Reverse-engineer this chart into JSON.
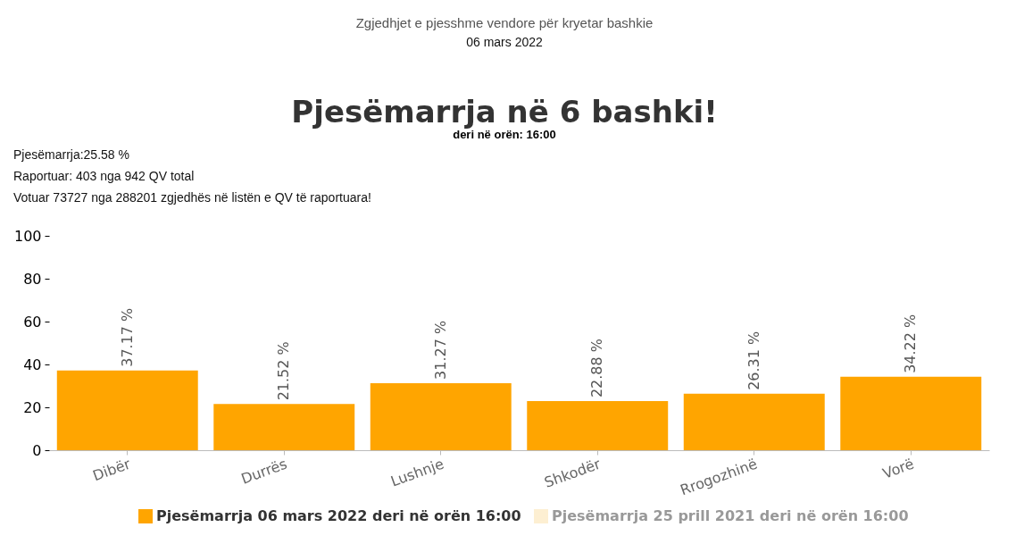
{
  "chart_data": {
    "type": "bar",
    "title": "Pjesëmarrja në 6 bashki!",
    "subtitle": "deri në orën: 16:00",
    "annotations": [
      "Zgjedhjet e pjesshme vendore për kryetar bashkie",
      "06 mars 2022",
      "Pjesëmarrja:25.58 %",
      "Raportuar: 403 nga 942 QV total",
      "Votuar 73727 nga 288201 zgjedhës në listën e QV të raportuara!"
    ],
    "categories": [
      "Dibër",
      "Durrës",
      "Lushnje",
      "Shkodër",
      "Rrogozhinë",
      "Vorë"
    ],
    "series": [
      {
        "name": "Pjesëmarrja 06 mars 2022 deri në orën 16:00",
        "color": "#ffa500",
        "values": [
          37.17,
          21.52,
          31.27,
          22.88,
          26.31,
          34.22
        ],
        "value_labels": [
          "37.17 %",
          "21.52 %",
          "31.27 %",
          "22.88 %",
          "26.31 %",
          "34.22 %"
        ]
      },
      {
        "name": "Pjesëmarrja 25 prill 2021 deri në orën 16:00",
        "color": "#fdefd2",
        "values": [
          null,
          null,
          null,
          null,
          null,
          null
        ]
      }
    ],
    "ylim": [
      0,
      100
    ],
    "yticks": [
      0,
      20,
      40,
      60,
      80,
      100
    ],
    "grid": false,
    "legend": "bottom"
  }
}
